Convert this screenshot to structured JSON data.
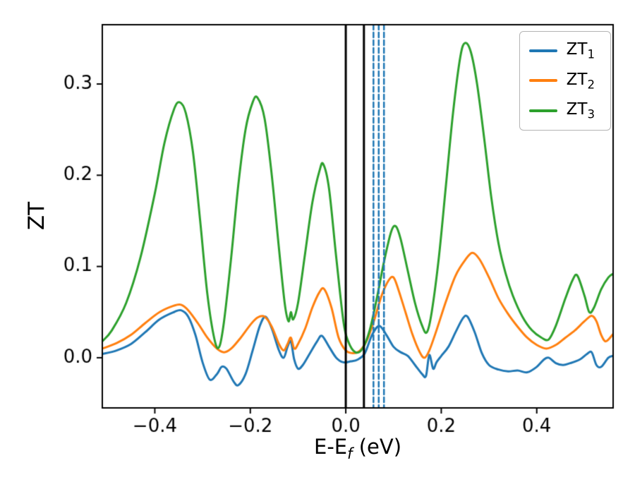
{
  "figure": {
    "ylabel": "ZT",
    "xlabel_main": "E-E",
    "xlabel_sub": "f",
    "xlabel_unit": " (eV)"
  },
  "legend": {
    "items": [
      {
        "label": "ZT",
        "sub": "1",
        "color": "#1f77b4"
      },
      {
        "label": "ZT",
        "sub": "2",
        "color": "#ff7f0e"
      },
      {
        "label": "ZT",
        "sub": "3",
        "color": "#2ca02c"
      }
    ]
  },
  "chart_data": {
    "type": "line",
    "title": "",
    "xlabel": "E-E_f (eV)",
    "ylabel": "ZT",
    "xlim": [
      -0.51,
      0.56
    ],
    "ylim": [
      -0.055,
      0.365
    ],
    "xticks": [
      -0.4,
      -0.2,
      0.0,
      0.2,
      0.4
    ],
    "xtick_labels": [
      "−0.4",
      "−0.2",
      "0.0",
      "0.2",
      "0.4"
    ],
    "yticks": [
      0.0,
      0.1,
      0.2,
      0.3
    ],
    "ytick_labels": [
      "0.0",
      "0.1",
      "0.2",
      "0.3"
    ],
    "grid": false,
    "legend_position": "upper right",
    "vlines_solid": {
      "color": "#000000",
      "x": [
        0.0,
        0.038
      ],
      "width": 3
    },
    "vlines_dashed": {
      "color": "#1f77b4",
      "x": [
        0.058,
        0.069,
        0.08
      ],
      "width": 2.5,
      "dash": [
        7,
        4
      ]
    },
    "series": [
      {
        "name": "ZT1",
        "color": "#1f77b4",
        "points": [
          [
            -0.51,
            0.004
          ],
          [
            -0.48,
            0.008
          ],
          [
            -0.45,
            0.015
          ],
          [
            -0.42,
            0.028
          ],
          [
            -0.39,
            0.042
          ],
          [
            -0.36,
            0.05
          ],
          [
            -0.345,
            0.052
          ],
          [
            -0.33,
            0.045
          ],
          [
            -0.315,
            0.025
          ],
          [
            -0.3,
            -0.005
          ],
          [
            -0.285,
            -0.024
          ],
          [
            -0.27,
            -0.018
          ],
          [
            -0.26,
            -0.01
          ],
          [
            -0.25,
            -0.012
          ],
          [
            -0.235,
            -0.026
          ],
          [
            -0.225,
            -0.03
          ],
          [
            -0.21,
            -0.018
          ],
          [
            -0.195,
            0.008
          ],
          [
            -0.18,
            0.035
          ],
          [
            -0.168,
            0.045
          ],
          [
            -0.155,
            0.032
          ],
          [
            -0.14,
            0.008
          ],
          [
            -0.13,
            0.0
          ],
          [
            -0.122,
            0.012
          ],
          [
            -0.115,
            0.018
          ],
          [
            -0.108,
            -0.002
          ],
          [
            -0.1,
            -0.012
          ],
          [
            -0.09,
            -0.008
          ],
          [
            -0.075,
            0.005
          ],
          [
            -0.06,
            0.018
          ],
          [
            -0.05,
            0.024
          ],
          [
            -0.035,
            0.012
          ],
          [
            -0.02,
            0.0
          ],
          [
            -0.005,
            -0.005
          ],
          [
            0.01,
            -0.004
          ],
          [
            0.025,
            -0.002
          ],
          [
            0.04,
            0.005
          ],
          [
            0.055,
            0.025
          ],
          [
            0.07,
            0.035
          ],
          [
            0.085,
            0.025
          ],
          [
            0.1,
            0.012
          ],
          [
            0.115,
            0.006
          ],
          [
            0.13,
            0.002
          ],
          [
            0.145,
            -0.008
          ],
          [
            0.16,
            -0.018
          ],
          [
            0.168,
            -0.02
          ],
          [
            0.175,
            0.003
          ],
          [
            0.183,
            -0.012
          ],
          [
            0.19,
            -0.005
          ],
          [
            0.2,
            0.002
          ],
          [
            0.215,
            0.012
          ],
          [
            0.23,
            0.028
          ],
          [
            0.245,
            0.043
          ],
          [
            0.255,
            0.045
          ],
          [
            0.27,
            0.028
          ],
          [
            0.285,
            0.005
          ],
          [
            0.3,
            -0.008
          ],
          [
            0.32,
            -0.013
          ],
          [
            0.34,
            -0.015
          ],
          [
            0.36,
            -0.014
          ],
          [
            0.38,
            -0.016
          ],
          [
            0.4,
            -0.01
          ],
          [
            0.415,
            -0.002
          ],
          [
            0.425,
            0.0
          ],
          [
            0.44,
            -0.006
          ],
          [
            0.455,
            -0.008
          ],
          [
            0.47,
            -0.006
          ],
          [
            0.49,
            -0.002
          ],
          [
            0.505,
            0.004
          ],
          [
            0.515,
            0.006
          ],
          [
            0.525,
            -0.008
          ],
          [
            0.535,
            -0.01
          ],
          [
            0.55,
            0.0
          ],
          [
            0.56,
            0.002
          ]
        ]
      },
      {
        "name": "ZT2",
        "color": "#ff7f0e",
        "points": [
          [
            -0.51,
            0.01
          ],
          [
            -0.48,
            0.016
          ],
          [
            -0.45,
            0.025
          ],
          [
            -0.42,
            0.038
          ],
          [
            -0.39,
            0.05
          ],
          [
            -0.36,
            0.057
          ],
          [
            -0.345,
            0.058
          ],
          [
            -0.33,
            0.052
          ],
          [
            -0.31,
            0.038
          ],
          [
            -0.29,
            0.022
          ],
          [
            -0.27,
            0.01
          ],
          [
            -0.255,
            0.006
          ],
          [
            -0.24,
            0.01
          ],
          [
            -0.22,
            0.022
          ],
          [
            -0.2,
            0.036
          ],
          [
            -0.185,
            0.044
          ],
          [
            -0.17,
            0.045
          ],
          [
            -0.155,
            0.034
          ],
          [
            -0.14,
            0.015
          ],
          [
            -0.13,
            0.008
          ],
          [
            -0.122,
            0.015
          ],
          [
            -0.115,
            0.022
          ],
          [
            -0.108,
            0.01
          ],
          [
            -0.1,
            0.015
          ],
          [
            -0.085,
            0.032
          ],
          [
            -0.07,
            0.055
          ],
          [
            -0.055,
            0.072
          ],
          [
            -0.045,
            0.075
          ],
          [
            -0.03,
            0.055
          ],
          [
            -0.015,
            0.022
          ],
          [
            0.0,
            0.008
          ],
          [
            0.015,
            0.005
          ],
          [
            0.03,
            0.008
          ],
          [
            0.045,
            0.02
          ],
          [
            0.06,
            0.042
          ],
          [
            0.075,
            0.068
          ],
          [
            0.09,
            0.085
          ],
          [
            0.1,
            0.088
          ],
          [
            0.11,
            0.075
          ],
          [
            0.125,
            0.05
          ],
          [
            0.14,
            0.025
          ],
          [
            0.155,
            0.006
          ],
          [
            0.165,
            0.0
          ],
          [
            0.175,
            0.008
          ],
          [
            0.19,
            0.03
          ],
          [
            0.21,
            0.062
          ],
          [
            0.23,
            0.09
          ],
          [
            0.25,
            0.107
          ],
          [
            0.265,
            0.115
          ],
          [
            0.28,
            0.108
          ],
          [
            0.3,
            0.088
          ],
          [
            0.32,
            0.065
          ],
          [
            0.34,
            0.048
          ],
          [
            0.36,
            0.034
          ],
          [
            0.38,
            0.022
          ],
          [
            0.4,
            0.014
          ],
          [
            0.42,
            0.01
          ],
          [
            0.44,
            0.014
          ],
          [
            0.46,
            0.022
          ],
          [
            0.48,
            0.03
          ],
          [
            0.5,
            0.04
          ],
          [
            0.515,
            0.046
          ],
          [
            0.525,
            0.04
          ],
          [
            0.535,
            0.025
          ],
          [
            0.545,
            0.018
          ],
          [
            0.56,
            0.026
          ]
        ]
      },
      {
        "name": "ZT3",
        "color": "#2ca02c",
        "points": [
          [
            -0.51,
            0.018
          ],
          [
            -0.49,
            0.03
          ],
          [
            -0.46,
            0.06
          ],
          [
            -0.43,
            0.11
          ],
          [
            -0.4,
            0.18
          ],
          [
            -0.38,
            0.235
          ],
          [
            -0.36,
            0.272
          ],
          [
            -0.348,
            0.28
          ],
          [
            -0.335,
            0.268
          ],
          [
            -0.32,
            0.225
          ],
          [
            -0.305,
            0.15
          ],
          [
            -0.29,
            0.07
          ],
          [
            -0.275,
            0.02
          ],
          [
            -0.265,
            0.012
          ],
          [
            -0.255,
            0.04
          ],
          [
            -0.24,
            0.11
          ],
          [
            -0.225,
            0.19
          ],
          [
            -0.21,
            0.25
          ],
          [
            -0.195,
            0.28
          ],
          [
            -0.185,
            0.285
          ],
          [
            -0.17,
            0.262
          ],
          [
            -0.155,
            0.2
          ],
          [
            -0.14,
            0.12
          ],
          [
            -0.128,
            0.06
          ],
          [
            -0.12,
            0.04
          ],
          [
            -0.115,
            0.05
          ],
          [
            -0.11,
            0.042
          ],
          [
            -0.1,
            0.06
          ],
          [
            -0.085,
            0.115
          ],
          [
            -0.07,
            0.17
          ],
          [
            -0.055,
            0.205
          ],
          [
            -0.047,
            0.212
          ],
          [
            -0.035,
            0.185
          ],
          [
            -0.02,
            0.11
          ],
          [
            -0.005,
            0.04
          ],
          [
            0.005,
            0.018
          ],
          [
            0.02,
            0.006
          ],
          [
            0.035,
            0.01
          ],
          [
            0.05,
            0.03
          ],
          [
            0.065,
            0.065
          ],
          [
            0.08,
            0.105
          ],
          [
            0.095,
            0.138
          ],
          [
            0.105,
            0.144
          ],
          [
            0.115,
            0.13
          ],
          [
            0.13,
            0.095
          ],
          [
            0.145,
            0.06
          ],
          [
            0.16,
            0.035
          ],
          [
            0.17,
            0.028
          ],
          [
            0.18,
            0.05
          ],
          [
            0.195,
            0.11
          ],
          [
            0.21,
            0.19
          ],
          [
            0.225,
            0.27
          ],
          [
            0.24,
            0.33
          ],
          [
            0.25,
            0.345
          ],
          [
            0.262,
            0.335
          ],
          [
            0.275,
            0.3
          ],
          [
            0.29,
            0.24
          ],
          [
            0.305,
            0.175
          ],
          [
            0.32,
            0.125
          ],
          [
            0.335,
            0.092
          ],
          [
            0.35,
            0.068
          ],
          [
            0.37,
            0.045
          ],
          [
            0.39,
            0.03
          ],
          [
            0.41,
            0.022
          ],
          [
            0.425,
            0.02
          ],
          [
            0.44,
            0.035
          ],
          [
            0.46,
            0.065
          ],
          [
            0.475,
            0.085
          ],
          [
            0.485,
            0.09
          ],
          [
            0.5,
            0.068
          ],
          [
            0.51,
            0.05
          ],
          [
            0.52,
            0.055
          ],
          [
            0.535,
            0.075
          ],
          [
            0.55,
            0.088
          ],
          [
            0.56,
            0.092
          ]
        ]
      }
    ]
  }
}
